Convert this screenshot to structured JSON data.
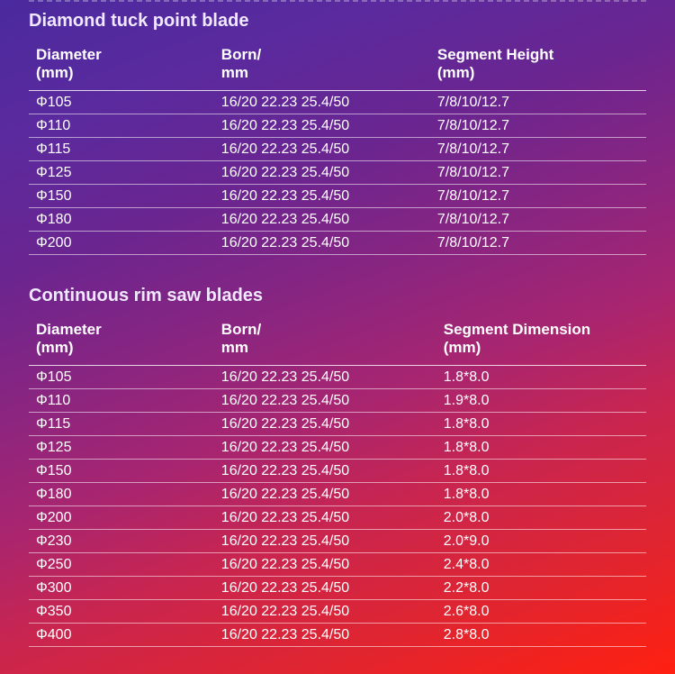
{
  "section1": {
    "title": "Diamond tuck point blade",
    "columns": [
      "Diameter\n(mm)",
      "Born/\nmm",
      "Segment Height\n (mm)"
    ],
    "rows": [
      [
        "Φ105",
        "16/20 22.23 25.4/50",
        "7/8/10/12.7"
      ],
      [
        "Φ110",
        "16/20 22.23 25.4/50",
        "7/8/10/12.7"
      ],
      [
        "Φ115",
        "16/20 22.23 25.4/50",
        "7/8/10/12.7"
      ],
      [
        "Φ125",
        "16/20 22.23 25.4/50",
        "7/8/10/12.7"
      ],
      [
        "Φ150",
        "16/20 22.23 25.4/50",
        "7/8/10/12.7"
      ],
      [
        "Φ180",
        "16/20 22.23 25.4/50",
        "7/8/10/12.7"
      ],
      [
        "Φ200",
        "16/20 22.23 25.4/50",
        "7/8/10/12.7"
      ]
    ]
  },
  "section2": {
    "title": "Continuous rim saw blades",
    "columns": [
      "Diameter\n(mm)",
      "Born/\nmm",
      "Segment Dimension\n (mm)"
    ],
    "rows": [
      [
        "Φ105",
        "16/20 22.23 25.4/50",
        "1.8*8.0"
      ],
      [
        "Φ110",
        "16/20 22.23 25.4/50",
        "1.9*8.0"
      ],
      [
        "Φ115",
        "16/20 22.23 25.4/50",
        "1.8*8.0"
      ],
      [
        "Φ125",
        "16/20 22.23 25.4/50",
        "1.8*8.0"
      ],
      [
        "Φ150",
        "16/20 22.23 25.4/50",
        "1.8*8.0"
      ],
      [
        "Φ180",
        "16/20 22.23 25.4/50",
        "1.8*8.0"
      ],
      [
        "Φ200",
        "16/20 22.23 25.4/50",
        "2.0*8.0"
      ],
      [
        "Φ230",
        "16/20 22.23 25.4/50",
        "2.0*9.0"
      ],
      [
        "Φ250",
        "16/20 22.23 25.4/50",
        "2.4*8.0"
      ],
      [
        "Φ300",
        "16/20 22.23 25.4/50",
        "2.2*8.0"
      ],
      [
        "Φ350",
        "16/20 22.23 25.4/50",
        "2.6*8.0"
      ],
      [
        "Φ400",
        "16/20 22.23 25.4/50",
        "2.8*8.0"
      ]
    ]
  }
}
